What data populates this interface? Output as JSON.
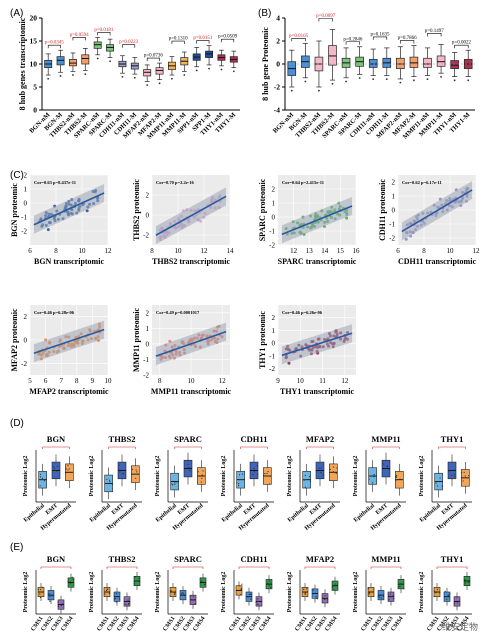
{
  "panel_letters": {
    "a": "(A)",
    "b": "(B)",
    "c": "(C)",
    "d": "(D)",
    "e": "(E)"
  },
  "watermark": "维安定物",
  "chart_data": [
    {
      "id": "A",
      "type": "box",
      "ylabel": "8 hub genes transcriptomic",
      "ylim": [
        0,
        20
      ],
      "yticks": [
        0,
        5,
        10,
        15,
        20
      ],
      "categories": [
        "BGN-nM",
        "BGN-M",
        "THBS2-nM",
        "THBS2-M",
        "SPARC-nM",
        "SPARC-M",
        "CDH11-nM",
        "CDH11-M",
        "MFAP2-nM",
        "MFAP2-M",
        "MMP11-nM",
        "MMP11-M",
        "SPP1-nM",
        "SPP1-M",
        "THY1-nM",
        "THY1-M"
      ],
      "colors": [
        "#4a8fd6",
        "#4a8fd6",
        "#f3a06b",
        "#f3a06b",
        "#7cc47a",
        "#7cc47a",
        "#9aa0cf",
        "#9aa0cf",
        "#f6b8c8",
        "#f6b8c8",
        "#f4b45c",
        "#f4b45c",
        "#1f4fa0",
        "#1f4fa0",
        "#b03050",
        "#b03050"
      ],
      "medians": [
        10.0,
        10.8,
        10.2,
        11.2,
        14.2,
        13.6,
        10.0,
        9.6,
        8.2,
        8.6,
        9.6,
        10.6,
        11.5,
        12.2,
        11.4,
        11.0
      ],
      "q1": [
        9.2,
        9.8,
        9.6,
        10.0,
        13.4,
        12.8,
        9.4,
        8.9,
        7.4,
        7.8,
        8.8,
        9.8,
        10.8,
        11.4,
        10.8,
        10.4
      ],
      "q3": [
        10.8,
        11.6,
        11.0,
        12.0,
        14.8,
        14.2,
        10.6,
        10.2,
        8.8,
        9.2,
        10.4,
        11.4,
        12.2,
        12.8,
        12.0,
        11.6
      ],
      "whisker_low": [
        7.6,
        8.2,
        8.4,
        8.6,
        12.0,
        11.4,
        8.0,
        7.8,
        6.2,
        6.6,
        7.6,
        8.4,
        9.4,
        9.8,
        9.6,
        9.2
      ],
      "whisker_high": [
        12.2,
        13.0,
        12.4,
        13.4,
        15.8,
        15.4,
        11.8,
        11.4,
        9.8,
        10.2,
        11.6,
        12.6,
        13.6,
        14.0,
        13.0,
        12.8
      ],
      "pvalues": [
        "p=0.0345",
        "p=0.0594",
        "p=0.0181",
        "p=0.0223",
        "p=0.0736",
        "p=0.1310",
        "p=0.0151",
        "p=0.0509"
      ],
      "pvalue_colors": [
        "#d62728",
        "#d62728",
        "#d62728",
        "#d62728",
        "#000000",
        "#000000",
        "#d62728",
        "#000000"
      ]
    },
    {
      "id": "B",
      "type": "box",
      "ylabel": "8 hub gene Proteomic",
      "ylim": [
        -4,
        4
      ],
      "yticks": [
        -4,
        -2,
        0,
        2,
        4
      ],
      "categories": [
        "BGN-nM",
        "BGN-M",
        "THBS2-nM",
        "THBS2-M",
        "SPARC-nM",
        "SPARC-M",
        "CDH11-nM",
        "CDH11-M",
        "MFAP2-nM",
        "MFAP2-M",
        "MMP11-nM",
        "MMP11-M",
        "THY1-nM",
        "THY1-M"
      ],
      "colors": [
        "#4a8fd6",
        "#4a8fd6",
        "#f6b8c8",
        "#f6b8c8",
        "#7cc47a",
        "#7cc47a",
        "#4a8fd6",
        "#4a8fd6",
        "#f3a06b",
        "#f3a06b",
        "#f6b8c8",
        "#f6b8c8",
        "#b03050",
        "#b03050"
      ],
      "medians": [
        -0.4,
        0.2,
        0.0,
        0.7,
        0.1,
        0.2,
        0.0,
        0.1,
        0.0,
        0.1,
        0.0,
        0.2,
        -0.1,
        0.0
      ],
      "q1": [
        -1.0,
        -0.3,
        -0.6,
        -0.1,
        -0.3,
        -0.2,
        -0.3,
        -0.3,
        -0.4,
        -0.3,
        -0.3,
        -0.2,
        -0.4,
        -0.4
      ],
      "q3": [
        0.2,
        0.7,
        0.6,
        1.6,
        0.5,
        0.6,
        0.4,
        0.5,
        0.5,
        0.6,
        0.5,
        0.7,
        0.3,
        0.4
      ],
      "whisker_low": [
        -2.0,
        -1.2,
        -2.0,
        -1.4,
        -1.2,
        -0.9,
        -1.0,
        -1.0,
        -1.3,
        -1.1,
        -1.0,
        -0.8,
        -1.1,
        -1.1
      ],
      "whisker_high": [
        1.2,
        1.8,
        2.0,
        3.0,
        1.4,
        1.5,
        1.3,
        1.4,
        1.5,
        1.6,
        1.4,
        1.7,
        1.0,
        1.2
      ],
      "pvalues": [
        "p=0.0165",
        "p=0.0097",
        "p=0.2846",
        "p=0.1635",
        "p=0.7866",
        "p=0.1497",
        "p=0.0022"
      ],
      "pvalue_colors": [
        "#d62728",
        "#d62728",
        "#000000",
        "#000000",
        "#000000",
        "#000000",
        "#000000"
      ]
    },
    {
      "id": "C",
      "type": "scatter",
      "ylabel_suffix": "proteomic",
      "xlabel_suffix": "transcriptomic",
      "plots": [
        {
          "gene": "BGN",
          "color": "#1f4fa0",
          "cor": "Cor=0.63  p=8.437e-11",
          "xlim": [
            6,
            12
          ],
          "xticks": [
            6,
            8,
            10,
            12
          ],
          "ylim": [
            -3,
            2
          ],
          "yticks": [
            -2,
            -1,
            0,
            1,
            2
          ],
          "slope": 0.42,
          "intercept": -4.2
        },
        {
          "gene": "THBS2",
          "color": "#d9a0d0",
          "cor": "Cor=0.70  p=2.2e-16",
          "xlim": [
            8,
            14
          ],
          "xticks": [
            8,
            10,
            12,
            14
          ],
          "ylim": [
            -3,
            4
          ],
          "yticks": [
            -2,
            0,
            2
          ],
          "slope": 0.72,
          "intercept": -8.0
        },
        {
          "gene": "SPARC",
          "color": "#3cb043",
          "cor": "Cor=0.64  p=2.415e-11",
          "xlim": [
            11,
            16
          ],
          "xticks": [
            12,
            13,
            14,
            15,
            16
          ],
          "ylim": [
            -2,
            3
          ],
          "yticks": [
            -2,
            -1,
            0,
            1,
            2
          ],
          "slope": 0.45,
          "intercept": -6.3
        },
        {
          "gene": "CDH11",
          "color": "#8a85c8",
          "cor": "Cor=0.62  p=6.17e-11",
          "xlim": [
            6,
            12
          ],
          "xticks": [
            6,
            8,
            10,
            12
          ],
          "ylim": [
            -2.5,
            2.5
          ],
          "yticks": [
            -2,
            -1,
            0,
            1,
            2
          ],
          "slope": 0.55,
          "intercept": -5.0
        },
        {
          "gene": "MFAP2",
          "color": "#f57f2a",
          "cor": "Cor=0.46  p=6.28e-06",
          "xlim": [
            5,
            10
          ],
          "xticks": [
            5,
            6,
            7,
            8,
            9,
            10
          ],
          "ylim": [
            -3,
            3
          ],
          "yticks": [
            -2,
            0,
            2
          ],
          "slope": 0.45,
          "intercept": -3.5
        },
        {
          "gene": "MMP11",
          "color": "#f07050",
          "cor": "Cor=0.49  p=0.0001017",
          "xlim": [
            7.5,
            12.5
          ],
          "xticks": [
            8,
            10,
            12
          ],
          "ylim": [
            -2,
            2.5
          ],
          "yticks": [
            -2,
            -1,
            0,
            1,
            2
          ],
          "slope": 0.35,
          "intercept": -3.5
        },
        {
          "gene": "THY1",
          "color": "#8b1a4a",
          "cor": "Cor=0.46  p=6.26e-06",
          "xlim": [
            9,
            12.5
          ],
          "xticks": [
            9,
            10,
            11,
            12
          ],
          "ylim": [
            -2.5,
            3
          ],
          "yticks": [
            -2,
            -1,
            0,
            1,
            2
          ],
          "slope": 0.55,
          "intercept": -6.0
        }
      ]
    },
    {
      "id": "D",
      "type": "box",
      "ylabel": "Proteomic Log2",
      "genes": [
        "BGN",
        "THBS2",
        "SPARC",
        "CDH11",
        "MFAP2",
        "MMP11",
        "THY1"
      ],
      "categories": [
        "Epithelial",
        "EMT",
        "Hypermutated"
      ],
      "colors": [
        "#6cb4e4",
        "#3f64b8",
        "#f2a65a"
      ],
      "medians": [
        [
          -0.2,
          0.3,
          0.2
        ],
        [
          -0.4,
          0.3,
          0.1
        ],
        [
          -0.3,
          0.4,
          0.0
        ],
        [
          -0.2,
          0.3,
          0.0
        ],
        [
          -0.2,
          0.3,
          0.2
        ],
        [
          0.0,
          0.4,
          -0.2
        ],
        [
          -0.3,
          0.3,
          -0.1
        ]
      ]
    },
    {
      "id": "E",
      "type": "box",
      "ylabel": "Proteomic Log2",
      "genes": [
        "BGN",
        "THBS2",
        "SPARC",
        "CDH11",
        "MFAP2",
        "MMP11",
        "THY1"
      ],
      "categories": [
        "CMS1",
        "CMS2",
        "CMS3",
        "CMS4"
      ],
      "colors": [
        "#e8a040",
        "#4a8fd6",
        "#8f6fb8",
        "#2e9a4a"
      ],
      "medians": [
        [
          0.0,
          -0.2,
          -0.8,
          0.6
        ],
        [
          0.0,
          -0.3,
          -0.6,
          0.7
        ],
        [
          0.0,
          -0.2,
          -0.5,
          0.6
        ],
        [
          0.1,
          -0.3,
          -0.6,
          0.5
        ],
        [
          0.0,
          -0.1,
          -0.4,
          0.4
        ],
        [
          0.0,
          -0.2,
          -0.3,
          0.5
        ],
        [
          0.0,
          -0.3,
          -0.6,
          0.7
        ]
      ]
    }
  ]
}
